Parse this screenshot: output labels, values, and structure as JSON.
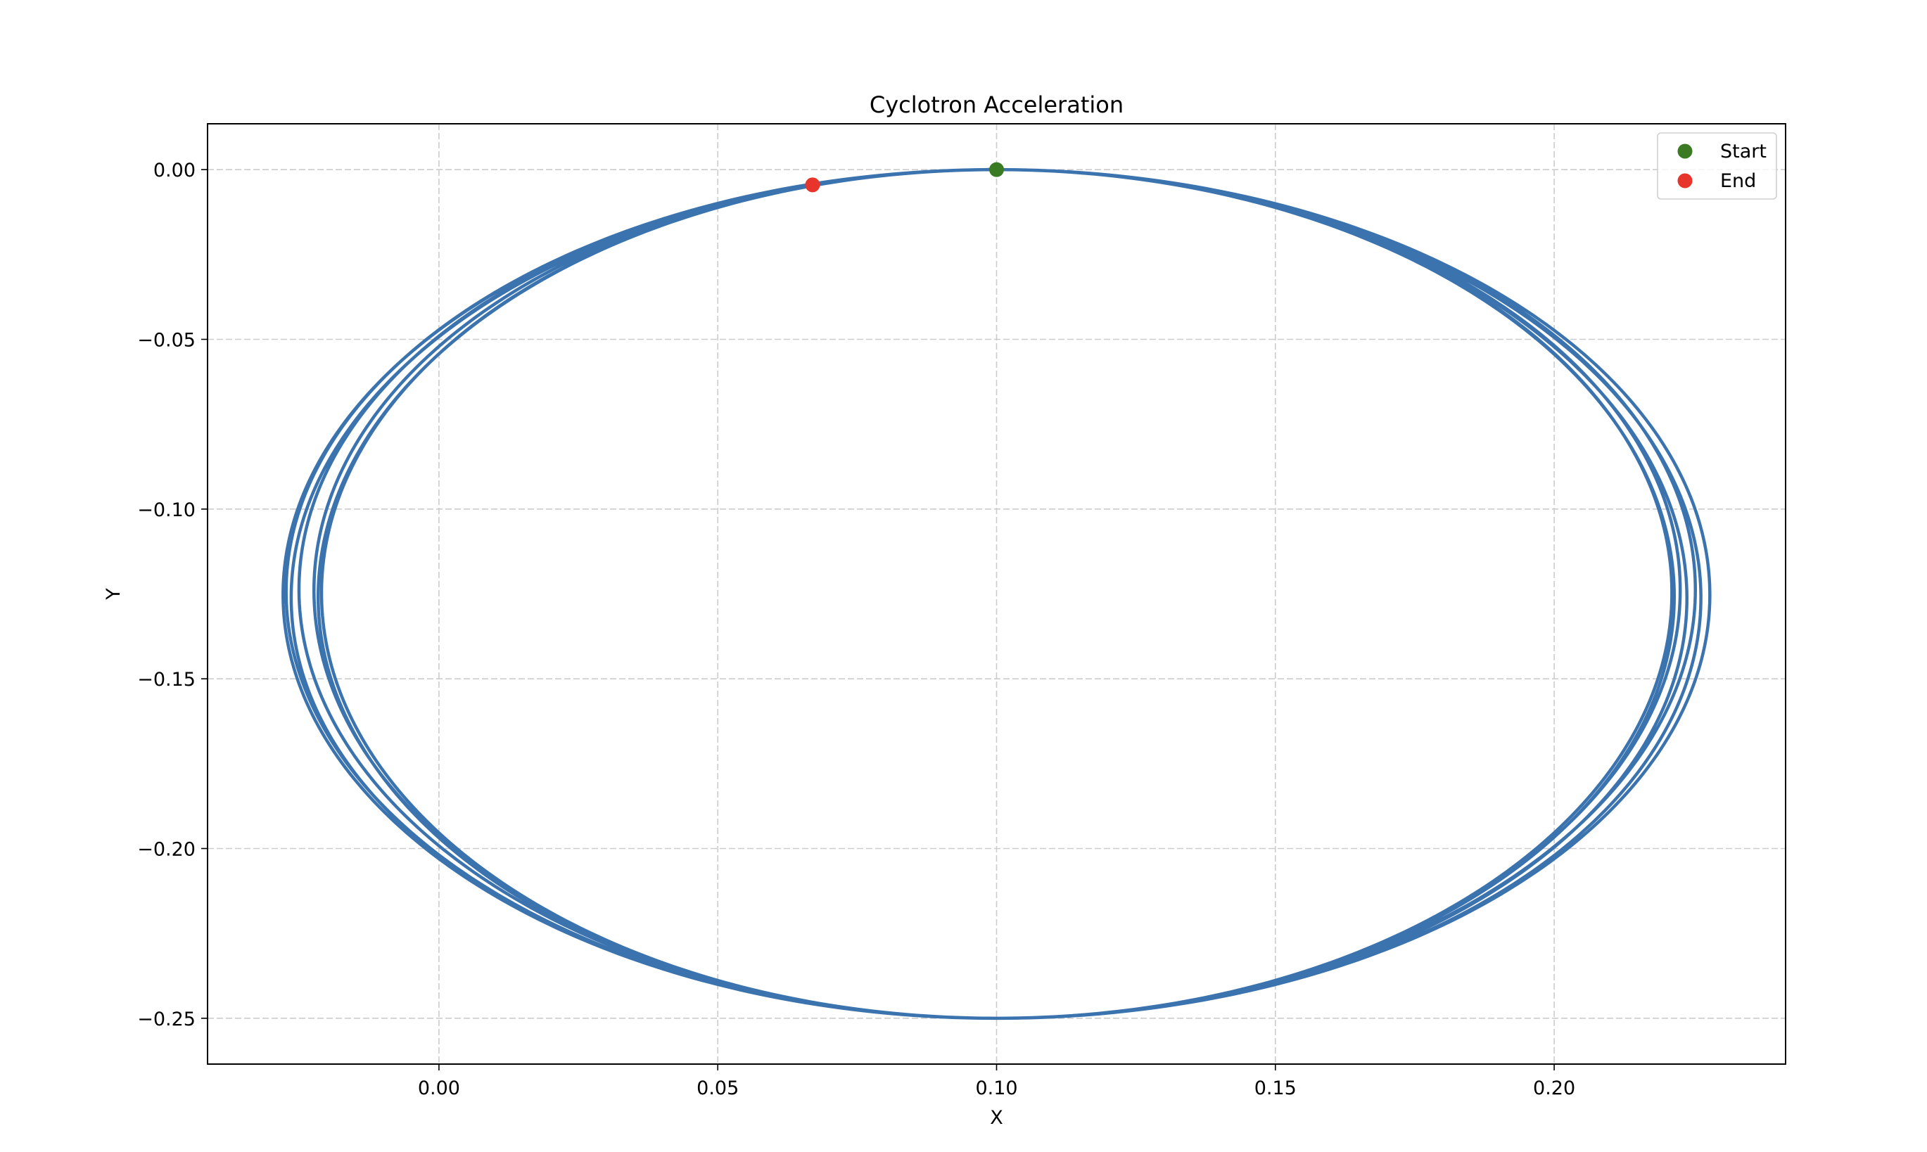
{
  "chart_data": {
    "type": "line",
    "title": "Cyclotron Acceleration",
    "xlabel": "X",
    "ylabel": "Y",
    "xlim": [
      -0.0415,
      0.2415
    ],
    "ylim": [
      -0.2635,
      0.0135
    ],
    "xticks": [
      0.0,
      0.05,
      0.1,
      0.15,
      0.2
    ],
    "xtick_labels": [
      "0.00",
      "0.05",
      "0.10",
      "0.15",
      "0.20"
    ],
    "yticks": [
      0.0,
      -0.05,
      -0.1,
      -0.15,
      -0.2,
      -0.25
    ],
    "ytick_labels": [
      "0.00",
      "−0.05",
      "−0.10",
      "−0.15",
      "−0.20",
      "−0.25"
    ],
    "grid": true,
    "legend_position": "top-right",
    "trajectory": {
      "description_type": "precessing elliptical orbit",
      "center_x": 0.1,
      "center_y": -0.125,
      "x_amplitude_min": 0.121,
      "x_amplitude_max": 0.128,
      "y_amplitude": 0.125,
      "revolutions": 7,
      "color": "#3b73af"
    },
    "series": [
      {
        "name": "Start",
        "x": [
          0.1
        ],
        "y": [
          0.0
        ],
        "color": "#3a7a22"
      },
      {
        "name": "End",
        "x": [
          0.067
        ],
        "y": [
          -0.0045
        ],
        "color": "#e8352b"
      }
    ]
  }
}
